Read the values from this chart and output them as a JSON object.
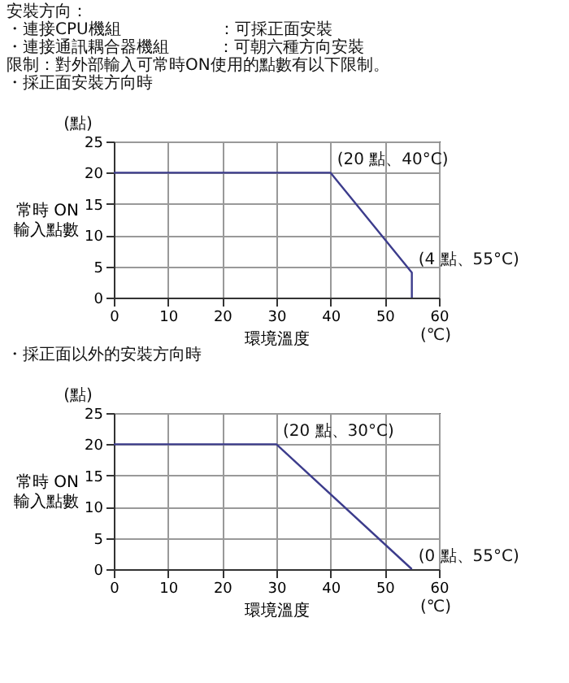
{
  "chart_data": [
    {
      "type": "line",
      "xlabel": "環境溫度",
      "ylabel": "常時 ON\n輸入點數",
      "annotations": [
        "安裝方向：",
        "・連接CPU機組　　　　　　：可採正面安裝",
        "・連接通訊耦合器機組　　　：可朝六種方向安裝",
        "限制：對外部輸入可常時ON使用的點數有以下限制。",
        "・採正面安裝方向時",
        "(點)",
        "(℃)",
        {
          "text": "(20 點、40°C)",
          "x": 40,
          "y": 20
        },
        {
          "text": "(4 點、55°C)",
          "x": 55,
          "y": 4
        }
      ],
      "x": [
        0,
        40,
        55,
        55
      ],
      "values": [
        20,
        20,
        4,
        0
      ],
      "color": "#3c3c8c",
      "xlim": [
        0,
        60
      ],
      "xticks": [
        0,
        10,
        20,
        30,
        40,
        50,
        60
      ],
      "ylim": [
        0,
        25
      ],
      "yticks": [
        0,
        5,
        10,
        15,
        20,
        25
      ],
      "grid": true
    },
    {
      "type": "line",
      "xlabel": "環境溫度",
      "ylabel": "常時 ON\n輸入點數",
      "annotations": [
        "・採正面以外的安裝方向時",
        "(點)",
        "(℃)",
        {
          "text": "(20 點、30°C)",
          "x": 30,
          "y": 20
        },
        {
          "text": "(0 點、55°C)",
          "x": 55,
          "y": 0
        }
      ],
      "x": [
        0,
        30,
        55
      ],
      "values": [
        20,
        20,
        0
      ],
      "color": "#3c3c8c",
      "xlim": [
        0,
        60
      ],
      "xticks": [
        0,
        10,
        20,
        30,
        40,
        50,
        60
      ],
      "ylim": [
        0,
        25
      ],
      "yticks": [
        0,
        5,
        10,
        15,
        20,
        25
      ],
      "grid": true
    }
  ]
}
